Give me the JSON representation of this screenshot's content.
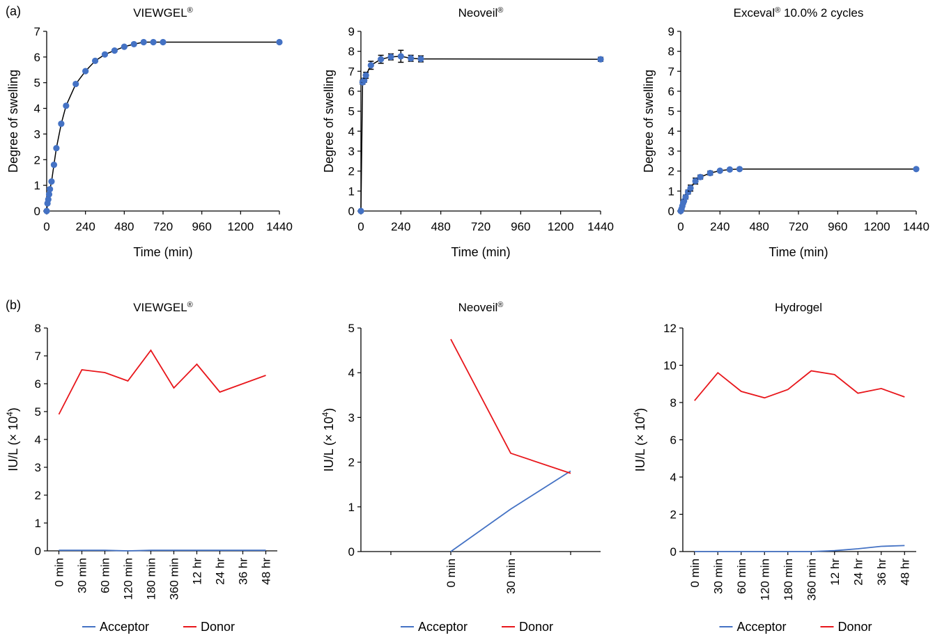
{
  "panel_labels": {
    "a": "(a)",
    "b": "(b)"
  },
  "colors": {
    "marker": "#4472C4",
    "fit_line": "#000000",
    "acceptor": "#4472C4",
    "donor": "#E8161B",
    "axis": "#000000"
  },
  "chart_data": [
    {
      "id": "a1",
      "type": "scatter",
      "title": "VIEWGEL",
      "title_sup": "®",
      "xlabel": "Time (min)",
      "ylabel": "Degree of swelling",
      "xlim": [
        0,
        1440
      ],
      "ylim": [
        0,
        7
      ],
      "xticks": [
        0,
        240,
        480,
        720,
        960,
        1200,
        1440
      ],
      "yticks": [
        0,
        1,
        2,
        3,
        4,
        5,
        6,
        7
      ],
      "grid": false,
      "series": [
        {
          "marker": "circle",
          "line": true,
          "error_bars": false,
          "x": [
            0,
            5,
            10,
            15,
            20,
            30,
            45,
            60,
            90,
            120,
            180,
            240,
            300,
            360,
            420,
            480,
            540,
            600,
            660,
            720,
            1440
          ],
          "y": [
            0,
            0.3,
            0.45,
            0.65,
            0.85,
            1.15,
            1.8,
            2.45,
            3.4,
            4.1,
            4.95,
            5.45,
            5.85,
            6.1,
            6.25,
            6.4,
            6.5,
            6.58,
            6.58,
            6.58,
            6.58
          ]
        }
      ]
    },
    {
      "id": "a2",
      "type": "scatter",
      "title": "Neoveil",
      "title_sup": "®",
      "xlabel": "Time (min)",
      "ylabel": "Degree of swelling",
      "xlim": [
        0,
        1440
      ],
      "ylim": [
        0,
        9
      ],
      "xticks": [
        0,
        240,
        480,
        720,
        960,
        1200,
        1440
      ],
      "yticks": [
        0,
        1,
        2,
        3,
        4,
        5,
        6,
        7,
        8,
        9
      ],
      "grid": false,
      "series": [
        {
          "marker": "circle",
          "line": true,
          "error_bars": true,
          "x": [
            0,
            10,
            20,
            30,
            60,
            120,
            180,
            240,
            300,
            360,
            1440
          ],
          "y": [
            0,
            6.45,
            6.55,
            6.8,
            7.3,
            7.6,
            7.72,
            7.75,
            7.65,
            7.62,
            7.6
          ],
          "err": [
            0,
            0.1,
            0.1,
            0.15,
            0.2,
            0.2,
            0.15,
            0.3,
            0.15,
            0.15,
            0.1
          ]
        }
      ]
    },
    {
      "id": "a3",
      "type": "scatter",
      "title": "Exceval",
      "title_sup": "®",
      "title_suffix": " 10.0% 2 cycles",
      "xlabel": "Time (min)",
      "ylabel": "Degree of swelling",
      "xlim": [
        0,
        1440
      ],
      "ylim": [
        0,
        9
      ],
      "xticks": [
        0,
        240,
        480,
        720,
        960,
        1200,
        1440
      ],
      "yticks": [
        0,
        1,
        2,
        3,
        4,
        5,
        6,
        7,
        8,
        9
      ],
      "grid": false,
      "series": [
        {
          "marker": "circle",
          "line": true,
          "error_bars": true,
          "x": [
            0,
            5,
            10,
            15,
            20,
            30,
            45,
            60,
            90,
            120,
            180,
            240,
            300,
            360,
            1440
          ],
          "y": [
            0,
            0.1,
            0.25,
            0.4,
            0.5,
            0.7,
            0.95,
            1.15,
            1.5,
            1.7,
            1.9,
            2.02,
            2.08,
            2.1,
            2.1
          ],
          "err": [
            0,
            0.05,
            0.05,
            0.05,
            0.05,
            0.1,
            0.1,
            0.15,
            0.15,
            0.1,
            0.1,
            0.05,
            0.05,
            0.05,
            0.05
          ]
        }
      ]
    },
    {
      "id": "b1",
      "type": "line",
      "title": "VIEWGEL",
      "title_sup": "®",
      "ylabel": "IU/L (× 10",
      "ylabel_sup": "4",
      "ylabel_end": ")",
      "categories": [
        "0 min",
        "30 min",
        "60 min",
        "120 min",
        "180 min",
        "360 min",
        "12 hr",
        "24 hr",
        "36 hr",
        "48 hr"
      ],
      "ylim": [
        0,
        8
      ],
      "yticks": [
        0,
        1,
        2,
        3,
        4,
        5,
        6,
        7,
        8
      ],
      "grid": false,
      "legend": "bottom",
      "series": [
        {
          "name": "Acceptor",
          "color": "#4472C4",
          "values": [
            0.02,
            0.02,
            0.02,
            0.0,
            0.02,
            0.02,
            0.02,
            0.02,
            0.02,
            0.02
          ]
        },
        {
          "name": "Donor",
          "color": "#E8161B",
          "values": [
            4.9,
            6.5,
            6.4,
            6.1,
            7.2,
            5.85,
            6.7,
            5.7,
            6.0,
            6.3
          ]
        }
      ]
    },
    {
      "id": "b2",
      "type": "line",
      "title": "Neoveil",
      "title_sup": "®",
      "ylabel": "IU/L (× 10",
      "ylabel_sup": "4",
      "ylabel_end": ")",
      "categories": [
        "",
        "0 min",
        "30 min",
        ""
      ],
      "ylim": [
        0,
        5
      ],
      "yticks": [
        0,
        1,
        2,
        3,
        4,
        5
      ],
      "grid": false,
      "legend": "bottom",
      "series": [
        {
          "name": "Acceptor",
          "color": "#4472C4",
          "values": [
            null,
            0.0,
            0.95,
            1.8
          ]
        },
        {
          "name": "Donor",
          "color": "#E8161B",
          "values": [
            null,
            4.75,
            2.2,
            1.75
          ]
        }
      ]
    },
    {
      "id": "b3",
      "type": "line",
      "title": "Hydrogel",
      "title_sup": "",
      "ylabel": "IU/L (× 10",
      "ylabel_sup": "4",
      "ylabel_end": ")",
      "categories": [
        "0 min",
        "30 min",
        "60 min",
        "120 min",
        "180 min",
        "360 min",
        "12 hr",
        "24 hr",
        "36 hr",
        "48 hr"
      ],
      "ylim": [
        0,
        12
      ],
      "yticks": [
        0,
        2,
        4,
        6,
        8,
        10,
        12
      ],
      "grid": false,
      "legend": "bottom",
      "series": [
        {
          "name": "Acceptor",
          "color": "#4472C4",
          "values": [
            0.0,
            0.0,
            0.0,
            0.0,
            0.0,
            0.0,
            0.05,
            0.15,
            0.28,
            0.32
          ]
        },
        {
          "name": "Donor",
          "color": "#E8161B",
          "values": [
            8.1,
            9.6,
            8.6,
            8.25,
            8.7,
            9.7,
            9.5,
            8.5,
            8.75,
            8.3
          ]
        }
      ]
    }
  ]
}
